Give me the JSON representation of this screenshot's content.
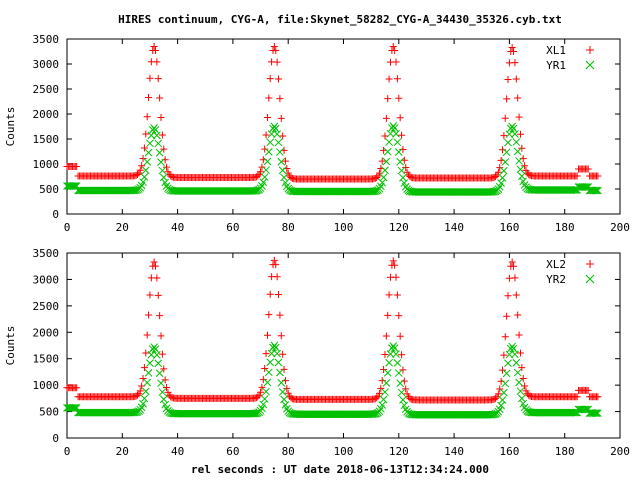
{
  "title": "HIRES continuum, CYG-A, file:Skynet_58282_CYG-A_34430_35326.cyb.txt",
  "xlabel": "rel seconds : UT date 2018-06-13T12:34:24.000",
  "colors": {
    "series_red": "#ff0000",
    "series_green": "#00c000"
  },
  "chart_data": [
    {
      "type": "scatter",
      "ylabel": "Counts",
      "xlim": [
        0,
        200
      ],
      "ylim": [
        0,
        3500
      ],
      "xticks": [
        0,
        20,
        40,
        60,
        80,
        100,
        120,
        140,
        160,
        180,
        200
      ],
      "yticks": [
        0,
        500,
        1000,
        1500,
        2000,
        2500,
        3000,
        3500
      ],
      "legend_position": "top-right",
      "series": [
        {
          "name": "XL1",
          "marker": "plus",
          "color": "#ff0000",
          "x_range": [
            0,
            192
          ],
          "x_step": 0.5,
          "baseline_segments": [
            [
              0,
              4,
              950
            ],
            [
              4,
              25,
              760
            ],
            [
              38,
              68,
              730
            ],
            [
              82,
              110,
              700
            ],
            [
              124,
              155,
              720
            ],
            [
              168,
              185,
              760
            ],
            [
              185,
              189,
              900
            ],
            [
              189,
              192,
              760
            ]
          ],
          "peaks": [
            [
              31.5,
              3350
            ],
            [
              75,
              3350
            ],
            [
              118,
              3350
            ],
            [
              161,
              3330
            ]
          ],
          "peak_sigma": 2.0
        },
        {
          "name": "YR1",
          "marker": "x",
          "color": "#00c000",
          "x_range": [
            0,
            192
          ],
          "x_step": 0.5,
          "baseline_segments": [
            [
              0,
              4,
              560
            ],
            [
              4,
              25,
              470
            ],
            [
              38,
              68,
              460
            ],
            [
              82,
              110,
              450
            ],
            [
              124,
              155,
              440
            ],
            [
              168,
              185,
              480
            ],
            [
              185,
              189,
              540
            ],
            [
              189,
              192,
              470
            ]
          ],
          "peaks": [
            [
              31.5,
              1720
            ],
            [
              75,
              1750
            ],
            [
              118,
              1760
            ],
            [
              161,
              1750
            ]
          ],
          "peak_sigma": 2.0
        }
      ]
    },
    {
      "type": "scatter",
      "ylabel": "Counts",
      "xlim": [
        0,
        200
      ],
      "ylim": [
        0,
        3500
      ],
      "xticks": [
        0,
        20,
        40,
        60,
        80,
        100,
        120,
        140,
        160,
        180,
        200
      ],
      "yticks": [
        0,
        500,
        1000,
        1500,
        2000,
        2500,
        3000,
        3500
      ],
      "legend_position": "top-right",
      "series": [
        {
          "name": "XL2",
          "marker": "plus",
          "color": "#ff0000",
          "x_range": [
            0,
            192
          ],
          "x_step": 0.5,
          "baseline_segments": [
            [
              0,
              4,
              950
            ],
            [
              4,
              25,
              780
            ],
            [
              38,
              68,
              750
            ],
            [
              82,
              110,
              730
            ],
            [
              124,
              155,
              720
            ],
            [
              168,
              185,
              780
            ],
            [
              185,
              189,
              900
            ],
            [
              189,
              192,
              780
            ]
          ],
          "peaks": [
            [
              31.5,
              3330
            ],
            [
              75,
              3360
            ],
            [
              118,
              3350
            ],
            [
              161,
              3330
            ]
          ],
          "peak_sigma": 2.0
        },
        {
          "name": "YR2",
          "marker": "x",
          "color": "#00c000",
          "x_range": [
            0,
            192
          ],
          "x_step": 0.5,
          "baseline_segments": [
            [
              0,
              4,
              570
            ],
            [
              4,
              25,
              480
            ],
            [
              38,
              68,
              460
            ],
            [
              82,
              110,
              450
            ],
            [
              124,
              155,
              440
            ],
            [
              168,
              185,
              480
            ],
            [
              185,
              189,
              540
            ],
            [
              189,
              192,
              470
            ]
          ],
          "peaks": [
            [
              31.5,
              1720
            ],
            [
              75,
              1750
            ],
            [
              118,
              1740
            ],
            [
              161,
              1730
            ]
          ],
          "peak_sigma": 2.0
        }
      ]
    }
  ]
}
